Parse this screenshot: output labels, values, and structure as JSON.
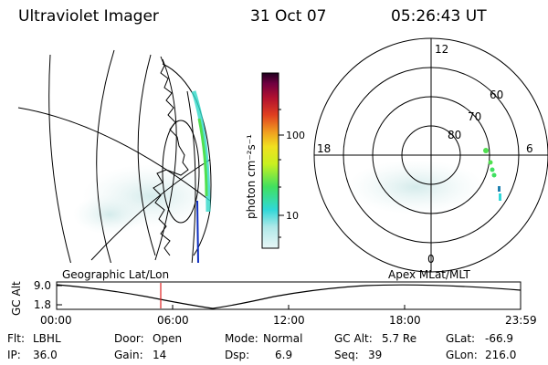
{
  "header": {
    "instrument": "Ultraviolet Imager",
    "date": "31 Oct 07",
    "time": "05:26:43 UT"
  },
  "colorbar": {
    "label": "photon cm⁻²s⁻¹",
    "ticks": [
      {
        "label": "100",
        "value": 100
      },
      {
        "label": "10",
        "value": 10
      }
    ],
    "scale": "log",
    "range": [
      2.5,
      600
    ],
    "colors": [
      "#d6f0f0",
      "#30d8d8",
      "#40e060",
      "#c8f020",
      "#f0e020",
      "#f0a020",
      "#e04020",
      "#b01030",
      "#700040",
      "#200020"
    ]
  },
  "polar_plot": {
    "mlt_labels": [
      "12",
      "6",
      "0",
      "18"
    ],
    "lat_labels": [
      "60",
      "70",
      "80"
    ]
  },
  "geo_plot": {
    "label": "Geographic Lat/Lon"
  },
  "apex_plot": {
    "label": "Apex MLat/MLT"
  },
  "alt_plot": {
    "axis_label": "GC Alt",
    "y_ticks": [
      "9.0",
      "1.8"
    ],
    "x_ticks": [
      "00:00",
      "06:00",
      "12:00",
      "18:00",
      "23:59"
    ],
    "current_time_marker": "05:26"
  },
  "status": {
    "row1": [
      {
        "label": "Flt:",
        "value": "LBHL"
      },
      {
        "label": "Door:",
        "value": "Open"
      },
      {
        "label": "Mode:",
        "value": "Normal"
      },
      {
        "label": "GC Alt:",
        "value": "5.7 Re"
      },
      {
        "label": "GLat:",
        "value": "-66.9"
      }
    ],
    "row2": [
      {
        "label": "IP:",
        "value": "36.0"
      },
      {
        "label": "Gain:",
        "value": "14"
      },
      {
        "label": "Dsp:",
        "value": "6.9"
      },
      {
        "label": "Seq:",
        "value": "39"
      },
      {
        "label": "GLon:",
        "value": "216.0"
      }
    ]
  }
}
